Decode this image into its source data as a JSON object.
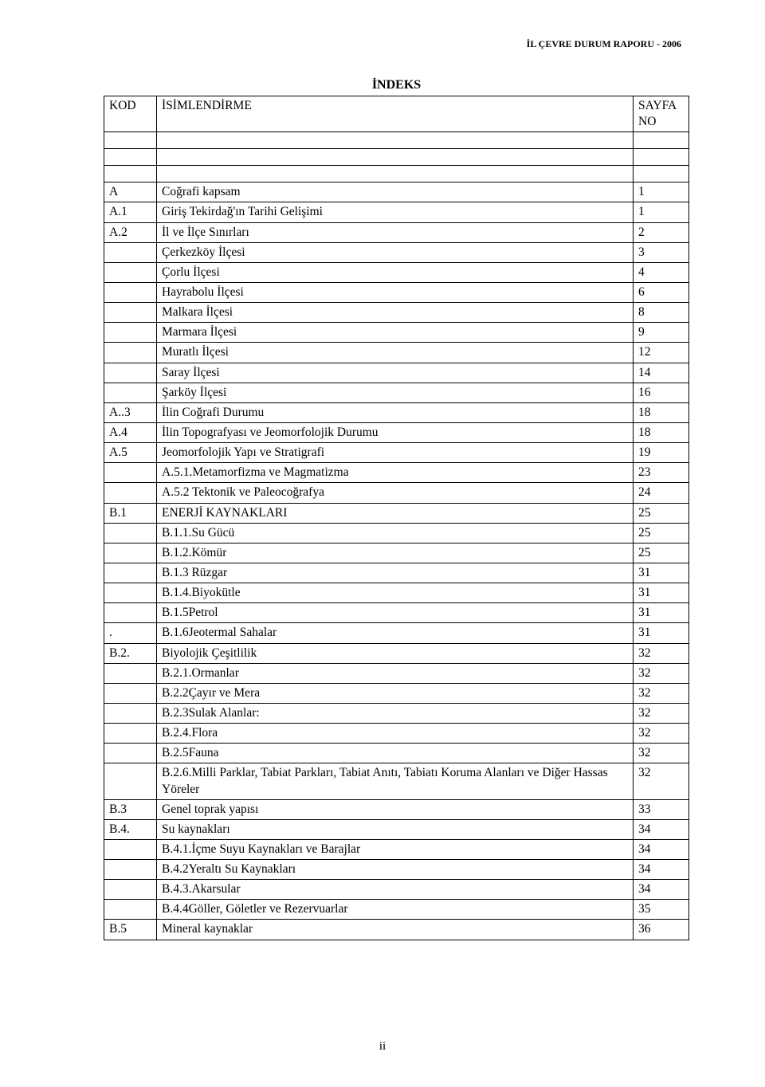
{
  "header_right": "İL ÇEVRE DURUM RAPORU - 2006",
  "index_title": "İNDEKS",
  "columns": {
    "kod": "KOD",
    "desc": "İSİMLENDİRME",
    "page": "SAYFA NO"
  },
  "rows": [
    {
      "kod": "A",
      "desc": "Coğrafi kapsam",
      "page": "1"
    },
    {
      "kod": "A.1",
      "desc": "Giriş   Tekirdağ'ın Tarihi Gelişimi",
      "page": "1"
    },
    {
      "kod": "A.2",
      "desc": " İl ve İlçe Sınırları",
      "page": "2"
    },
    {
      "kod": "",
      "desc": "Çerkezköy İlçesi",
      "page": "3"
    },
    {
      "kod": "",
      "desc": "Çorlu İlçesi",
      "page": "4"
    },
    {
      "kod": "",
      "desc": "Hayrabolu  İlçesi",
      "page": "6"
    },
    {
      "kod": "",
      "desc": "Malkara İlçesi",
      "page": "8"
    },
    {
      "kod": "",
      "desc": " Marmara İlçesi",
      "page": "9"
    },
    {
      "kod": "",
      "desc": " Muratlı İlçesi",
      "page": "12"
    },
    {
      "kod": "",
      "desc": "Saray İlçesi",
      "page": "14"
    },
    {
      "kod": "",
      "desc": "Şarköy İlçesi",
      "page": "16"
    },
    {
      "kod": "A..3",
      "desc": "İlin Coğrafi Durumu",
      "page": "18"
    },
    {
      "kod": "A.4",
      "desc": "İlin Topografyası ve Jeomorfolojik Durumu",
      "page": "18"
    },
    {
      "kod": "A.5",
      "desc": "Jeomorfolojik Yapı ve Stratigrafi",
      "page": "19"
    },
    {
      "kod": "",
      "desc": "A.5.1.Metamorfizma ve Magmatizma",
      "page": "23"
    },
    {
      "kod": "",
      "desc": "A.5.2 Tektonik ve Paleocoğrafya",
      "page": "24"
    },
    {
      "kod": "B.1",
      "desc": "ENERJİ KAYNAKLARI",
      "page": "25"
    },
    {
      "kod": "",
      "desc": "B.1.1.Su Gücü",
      "page": "25"
    },
    {
      "kod": "",
      "desc": "B.1.2.Kömür",
      "page": "25"
    },
    {
      "kod": "",
      "desc": "B.1.3 Rüzgar",
      "page": "31"
    },
    {
      "kod": "",
      "desc": "B.1.4.Biyokütle",
      "page": "31"
    },
    {
      "kod": "",
      "desc": "B.1.5Petrol",
      "page": "31"
    },
    {
      "kod": ".",
      "desc": "B.1.6Jeotermal Sahalar",
      "page": "31"
    },
    {
      "kod": "B.2.",
      "desc": "Biyolojik Çeşitlilik",
      "page": "32"
    },
    {
      "kod": "",
      "desc": "B.2.1.Ormanlar",
      "page": "32"
    },
    {
      "kod": "",
      "desc": "B.2.2Çayır ve Mera",
      "page": "32"
    },
    {
      "kod": "",
      "desc": "B.2.3Sulak Alanlar:",
      "page": "32"
    },
    {
      "kod": "",
      "desc": "B.2.4.Flora",
      "page": "32"
    },
    {
      "kod": "",
      "desc": "B.2.5Fauna",
      "page": "32"
    },
    {
      "kod": "",
      "desc": "B.2.6.Milli Parklar, Tabiat Parkları, Tabiat Anıtı, Tabiatı Koruma Alanları ve Diğer Hassas Yöreler",
      "page": "32"
    },
    {
      "kod": "B.3",
      "desc": "Genel toprak yapısı",
      "page": "33"
    },
    {
      "kod": "B.4.",
      "desc": "Su kaynakları",
      "page": "34"
    },
    {
      "kod": "",
      "desc": "B.4.1.İçme Suyu Kaynakları ve Barajlar",
      "page": "34"
    },
    {
      "kod": "",
      "desc": "B.4.2Yeraltı Su Kaynakları",
      "page": "34"
    },
    {
      "kod": "",
      "desc": "B.4.3.Akarsular",
      "page": "34"
    },
    {
      "kod": "",
      "desc": "B.4.4Göller, Göletler ve Rezervuarlar",
      "page": "35"
    },
    {
      "kod": "B.5",
      "desc": " Mineral kaynaklar",
      "page": "36"
    }
  ],
  "page_number": "ii"
}
